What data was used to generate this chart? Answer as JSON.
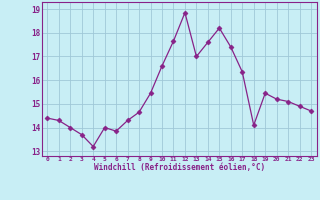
{
  "x": [
    0,
    1,
    2,
    3,
    4,
    5,
    6,
    7,
    8,
    9,
    10,
    11,
    12,
    13,
    14,
    15,
    16,
    17,
    18,
    19,
    20,
    21,
    22,
    23
  ],
  "y": [
    14.4,
    14.3,
    14.0,
    13.7,
    13.2,
    14.0,
    13.85,
    14.3,
    14.65,
    15.45,
    16.6,
    17.65,
    18.85,
    17.0,
    17.6,
    18.2,
    17.4,
    16.35,
    14.1,
    15.45,
    15.2,
    15.1,
    14.9,
    14.7
  ],
  "line_color": "#882288",
  "marker": "D",
  "marker_size": 2.5,
  "bg_color": "#C8EEF5",
  "grid_color": "#A0C8D8",
  "xlabel": "Windchill (Refroidissement éolien,°C)",
  "xlabel_color": "#882288",
  "tick_color": "#882288",
  "spine_color": "#882288",
  "ylim": [
    12.8,
    19.3
  ],
  "yticks": [
    13,
    14,
    15,
    16,
    17,
    18,
    19
  ],
  "xlim": [
    -0.5,
    23.5
  ],
  "xticks": [
    0,
    1,
    2,
    3,
    4,
    5,
    6,
    7,
    8,
    9,
    10,
    11,
    12,
    13,
    14,
    15,
    16,
    17,
    18,
    19,
    20,
    21,
    22,
    23
  ],
  "xtick_labels": [
    "0",
    "1",
    "2",
    "3",
    "4",
    "5",
    "6",
    "7",
    "8",
    "9",
    "10",
    "11",
    "12",
    "13",
    "14",
    "15",
    "16",
    "17",
    "18",
    "19",
    "20",
    "21",
    "22",
    "23"
  ]
}
